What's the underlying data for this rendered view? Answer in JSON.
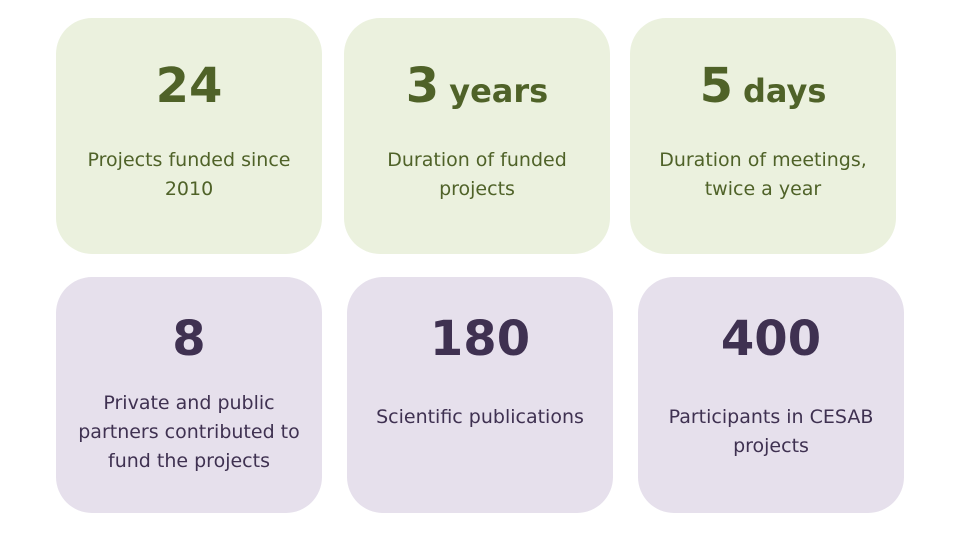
{
  "cards": [
    {
      "number": "24",
      "unit": null,
      "label": "Projects funded since 2010"
    },
    {
      "number": "3",
      "unit": "years",
      "label": "Duration of funded projects"
    },
    {
      "number": "5",
      "unit": "days",
      "label": "Duration of meetings, twice a year"
    },
    {
      "number": "8",
      "unit": null,
      "label": "Private and public partners contributed to fund the projects"
    },
    {
      "number": "180",
      "unit": null,
      "label": "Scientific publications"
    },
    {
      "number": "400",
      "unit": null,
      "label": "Participants in CESAB projects"
    }
  ]
}
